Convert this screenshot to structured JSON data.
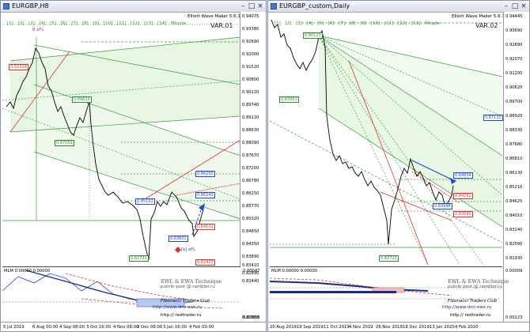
{
  "left": {
    "title": "EURGBP,H8",
    "indicator": "Elliott Wave Maker 5.6.1.5",
    "var": "VAR.01",
    "timeframes": [
      "[1]",
      "[2]",
      "[3]",
      "[4]",
      "[5]",
      "[6]",
      "[7]",
      "[8]",
      "[9]",
      "[10]",
      "[11]",
      "[12]",
      "[13]",
      "[14]",
      "Minute"
    ],
    "wave_label": "B eFL",
    "b_label": "[b] eFL",
    "prices": [
      "0.94075",
      "0.93380",
      "0.92690",
      "0.92000",
      "0.91520",
      "0.90800",
      "0.90120",
      "0.89740",
      "0.89120",
      "0.88630",
      "0.88090",
      "0.87670",
      "0.87200",
      "0.86780",
      "0.86250",
      "0.85770",
      "0.85320",
      "0.84850",
      "0.84350",
      "0.83890",
      "0.83410",
      "0.82890",
      "0.82440",
      "0.81968"
    ],
    "dates": [
      "5 Jul 2019",
      "6 Aug 00:00",
      "4 Sep 08:00",
      "3 Oct 16:00",
      "4 Nov 08:00",
      "3 Dec 08:00",
      "3 Jan 16:00",
      "4 Feb 00:00"
    ],
    "boxes": [
      "0.92319",
      "0.89810",
      "0.87053",
      "0.86293",
      "0.86243",
      "0.85152",
      "0.84102",
      "0.83601",
      "0.82721",
      "0.82423"
    ],
    "sub_label": "MLM 0.00000 0.00000",
    "watermark1": "EWL & EWA Technique",
    "watermark2": "putnik-post @ rambler.ru",
    "credit1": "Fibonacci Traders Club",
    "credit2": "http://www.dmi-ews.ru",
    "credit3": "http:// redtrader.ru",
    "sub_prices": [
      "0.00047",
      "0.00019"
    ]
  },
  "right": {
    "title": "EURGBP_custom,Daily",
    "indicator": "Elliott Wave Maker 5.6.1.5",
    "var": "VAR.02",
    "timeframes": [
      "[1]",
      "[2]",
      "[3]",
      "[4]",
      "[5]",
      "[6]",
      "[7]",
      "[8]",
      "[9]",
      "[10]",
      "[11]",
      "[12]",
      "[13]",
      "Minute"
    ],
    "prices": [
      "0.94445",
      "0.93690",
      "0.92890",
      "0.92070",
      "0.91200",
      "0.90620",
      "0.89700",
      "0.88920",
      "0.88330",
      "0.87680",
      "0.86810",
      "0.86130",
      "0.85210",
      "0.84625",
      "0.84010",
      "0.83140",
      "0.82560",
      "0.81930"
    ],
    "dates": [
      "20 Aug 2019",
      "19 Sep 2019",
      "11 Oct 2019",
      "4 Nov 2019",
      "26 Nov 2019",
      "18 Dec 2019",
      "13 Jan 2020",
      "4 Feb 2020"
    ],
    "boxes": [
      "0.90123",
      "0.87953",
      "0.87120",
      "0.84834",
      "0.84252",
      "0.83998",
      "0.83590",
      "0.82720"
    ],
    "sub_label": "MLM 0.00000 0.00000",
    "watermark1": "EWL & EWA Technique",
    "watermark2": "putnik-post @ rambler.ru",
    "credit1": "Fibonacci Traders Club",
    "credit2": "http://www.dmi-ews.ru",
    "credit3": "http:// redtrader.ru",
    "sub_prices": [
      "0.00009",
      "0.00223"
    ]
  },
  "colors": {
    "grid": "#2e8b2e",
    "fill": "#e4f5e1",
    "red": "#e03030",
    "blue": "#2247d6",
    "navy": "#1c2a8c"
  }
}
